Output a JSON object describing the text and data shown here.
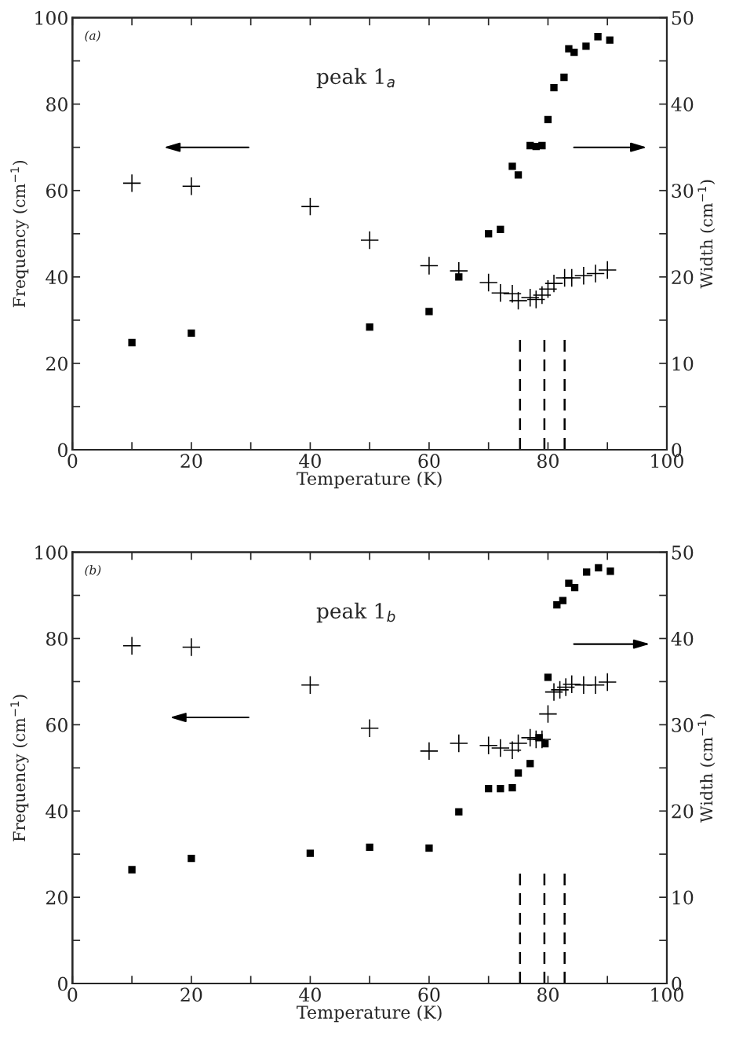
{
  "chart_data": [
    {
      "type": "scatter",
      "xlabel": "Temperature (K)",
      "ylabel": "Frequency (cm$^{−1}$)",
      "y2label": "Width (cm$^{−1}$)",
      "annotations": [
        "(a)",
        "peak 1$_{a}$"
      ],
      "xlim": [
        0,
        100
      ],
      "xticks": [
        0,
        {
          "value": 10,
          "label": null
        },
        20,
        {
          "value": 30,
          "label": null
        },
        40,
        {
          "value": 50,
          "label": null
        },
        60,
        {
          "value": 70,
          "label": null
        },
        80,
        {
          "value": 90,
          "label": null
        },
        100
      ],
      "ylim": [
        0,
        100
      ],
      "yticks": [
        0,
        {
          "value": 10,
          "label": null
        },
        20,
        {
          "value": 30,
          "label": null
        },
        40,
        {
          "value": 50,
          "label": null
        },
        60,
        {
          "value": 70,
          "label": null
        },
        80,
        {
          "value": 90,
          "label": null
        },
        100
      ],
      "y2lim": [
        0,
        50
      ],
      "y2ticks": [
        0,
        {
          "value": 5,
          "label": null
        },
        10,
        {
          "value": 15,
          "label": null
        },
        20,
        {
          "value": 25,
          "label": null
        },
        30,
        {
          "value": 35,
          "label": null
        },
        40,
        {
          "value": 45,
          "label": null
        },
        50
      ],
      "grid": false,
      "legend": false,
      "ref_lines": [
        {
          "axis": "x",
          "value": 75.3,
          "line_style": "dashed",
          "color": "#000000"
        },
        {
          "axis": "x",
          "value": 79.4,
          "line_style": "dashed",
          "color": "#000000"
        },
        {
          "axis": "x",
          "value": 82.8,
          "line_style": "dashed",
          "color": "#000000"
        }
      ],
      "series": [
        {
          "color": "#000000",
          "marker": "cross",
          "x": [
            10,
            20,
            40,
            50,
            60,
            65,
            70,
            72,
            74,
            75,
            77,
            78,
            79,
            80,
            81,
            82.8,
            84,
            86,
            88,
            90
          ],
          "values": [
            61.7,
            61,
            56.3,
            48.5,
            42.6,
            41.4,
            38.7,
            36.3,
            36.1,
            34.5,
            35.2,
            34.8,
            35.8,
            37.2,
            38.5,
            39.8,
            39.8,
            40.3,
            40.8,
            41.6
          ]
        },
        {
          "color": "#000000",
          "marker": "square",
          "axis": "y2",
          "x": [
            10,
            20,
            50,
            60,
            65,
            70,
            72,
            74,
            75,
            77,
            78,
            79,
            80,
            81,
            82.7,
            83.5,
            84.4,
            86.4,
            88.4,
            90.4
          ],
          "values": [
            12.4,
            13.5,
            14.2,
            16,
            20,
            25,
            25.5,
            32.8,
            31.8,
            35.2,
            35.1,
            35.2,
            38.2,
            41.9,
            43.1,
            46.4,
            46,
            46.7,
            47.8,
            47.4
          ]
        }
      ]
    },
    {
      "type": "scatter",
      "xlabel": "Temperature (K)",
      "ylabel": "Frequency (cm$^{−1}$)",
      "y2label": "Width (cm$^{−1}$)",
      "annotations": [
        "(b)",
        "peak 1$_{b}$"
      ],
      "xlim": [
        0,
        100
      ],
      "xticks": [
        0,
        {
          "value": 10,
          "label": null
        },
        20,
        {
          "value": 30,
          "label": null
        },
        40,
        {
          "value": 50,
          "label": null
        },
        60,
        {
          "value": 70,
          "label": null
        },
        80,
        {
          "value": 90,
          "label": null
        },
        100
      ],
      "ylim": [
        0,
        100
      ],
      "yticks": [
        0,
        {
          "value": 10,
          "label": null
        },
        20,
        {
          "value": 30,
          "label": null
        },
        40,
        {
          "value": 50,
          "label": null
        },
        60,
        {
          "value": 70,
          "label": null
        },
        80,
        {
          "value": 90,
          "label": null
        },
        100
      ],
      "y2lim": [
        0,
        50
      ],
      "y2ticks": [
        0,
        {
          "value": 5,
          "label": null
        },
        10,
        {
          "value": 15,
          "label": null
        },
        20,
        {
          "value": 25,
          "label": null
        },
        30,
        {
          "value": 35,
          "label": null
        },
        40,
        {
          "value": 45,
          "label": null
        },
        50
      ],
      "grid": false,
      "legend": false,
      "ref_lines": [
        {
          "axis": "x",
          "value": 75.3,
          "line_style": "dashed",
          "color": "#000000"
        },
        {
          "axis": "x",
          "value": 79.4,
          "line_style": "dashed",
          "color": "#000000"
        },
        {
          "axis": "x",
          "value": 82.8,
          "line_style": "dashed",
          "color": "#000000"
        }
      ],
      "series": [
        {
          "color": "#000000",
          "marker": "cross",
          "x": [
            10,
            20,
            40,
            50,
            60,
            65,
            70,
            72,
            74,
            75,
            77,
            78,
            79,
            80,
            81,
            82,
            83,
            84,
            86,
            88,
            90
          ],
          "values": [
            78.3,
            78,
            69.2,
            59.2,
            53.9,
            55.7,
            55.2,
            54.6,
            54.1,
            55.7,
            57,
            56.6,
            56.6,
            62.5,
            67.6,
            68.1,
            68.7,
            69.4,
            69.2,
            69.2,
            69.9
          ]
        },
        {
          "color": "#000000",
          "marker": "square",
          "axis": "y2",
          "x": [
            10,
            20,
            40,
            50,
            60,
            65,
            70,
            72,
            74,
            75,
            77,
            78.5,
            79.5,
            80,
            81.5,
            82.5,
            83.5,
            84.5,
            86.5,
            88.5,
            90.5
          ],
          "values": [
            13.2,
            14.5,
            15.1,
            15.8,
            15.7,
            19.9,
            22.6,
            22.6,
            22.7,
            24.4,
            25.5,
            28.5,
            27.8,
            35.5,
            43.9,
            44.4,
            46.4,
            45.9,
            47.7,
            48.2,
            47.8
          ]
        }
      ]
    }
  ]
}
